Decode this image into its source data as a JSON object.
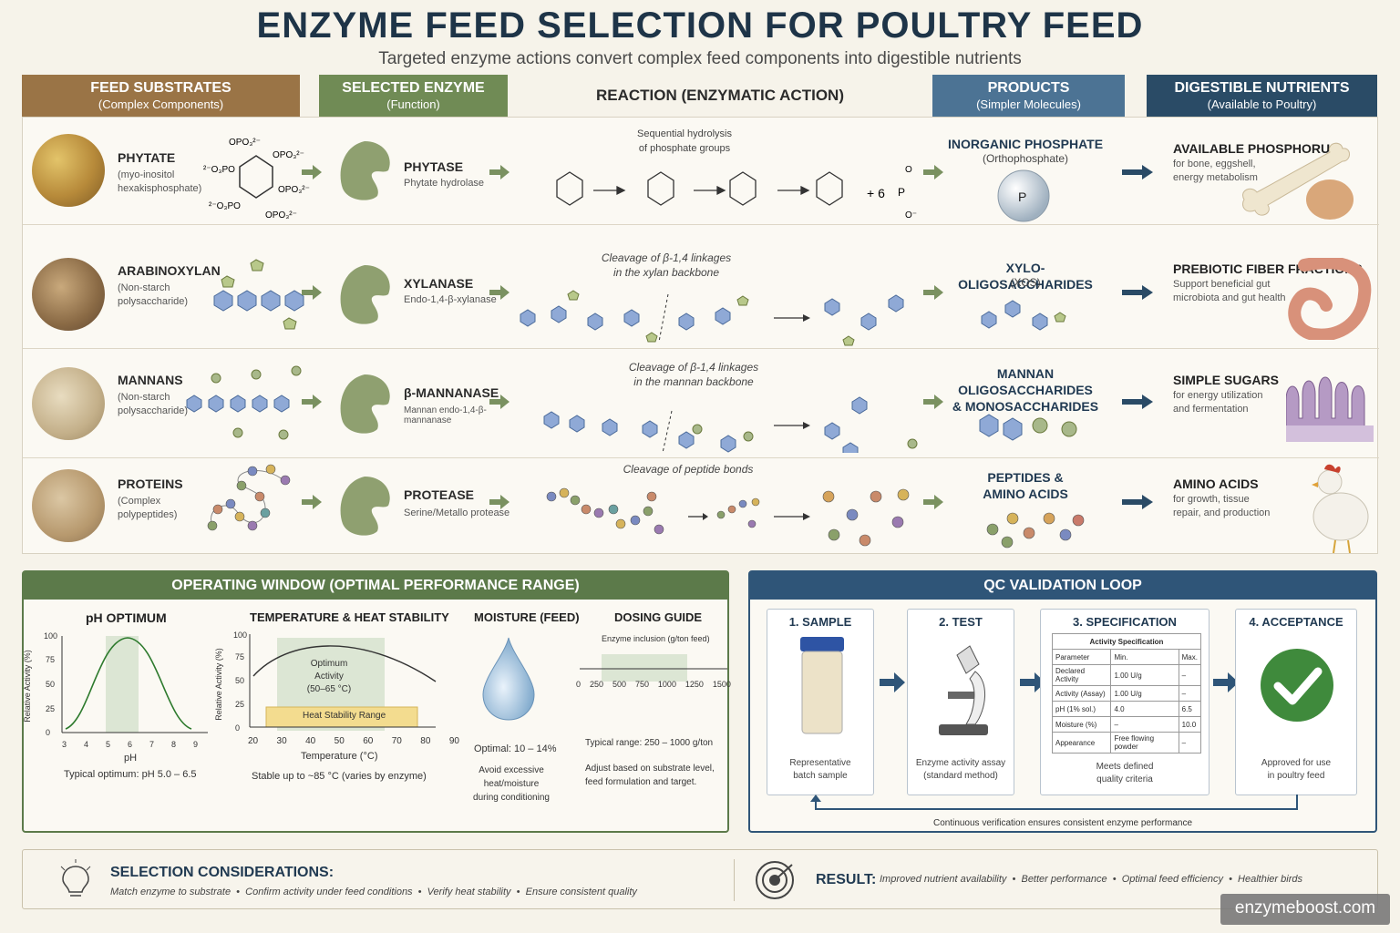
{
  "title": "ENZYME FEED SELECTION FOR POULTRY FEED",
  "subtitle": "Targeted enzyme actions convert complex feed components into digestible nutrients",
  "headers": {
    "substrates": {
      "title": "FEED SUBSTRATES",
      "sub": "(Complex Components)"
    },
    "enzyme": {
      "title": "SELECTED ENZYME",
      "sub": "(Function)"
    },
    "reaction": {
      "title": "REACTION (ENZYMATIC ACTION)"
    },
    "products": {
      "title": "PRODUCTS",
      "sub": "(Simpler Molecules)"
    },
    "nutrients": {
      "title": "DIGESTIBLE NUTRIENTS",
      "sub": "(Available to Poultry)"
    }
  },
  "rows": [
    {
      "substrate": "PHYTATE",
      "substrate_desc": [
        "(myo-inositol",
        "hexakisphosphate)"
      ],
      "enzyme": "PHYTASE",
      "enzyme_desc": "Phytate hydrolase",
      "reaction_note": [
        "Sequential hydrolysis",
        "of phosphate groups"
      ],
      "reaction_extra": "+ 6",
      "product": [
        "INORGANIC PHOSPHATE"
      ],
      "product_sub": "(Orthophosphate)",
      "nutrient": "AVAILABLE PHOSPHORUS",
      "nutrient_desc": [
        "for bone, eggshell,",
        "energy metabolism"
      ]
    },
    {
      "substrate": "ARABINOXYLAN",
      "substrate_desc": [
        "(Non-starch",
        "polysaccharide)"
      ],
      "enzyme": "XYLANASE",
      "enzyme_desc": "Endo-1,4-β-xylanase",
      "reaction_note": [
        "Cleavage of β-1,4 linkages",
        "in the xylan backbone"
      ],
      "product": [
        "XYLO-OLIGOSACCHARIDES"
      ],
      "product_sub": "(XOS)",
      "nutrient": "PREBIOTIC FIBER FRACTIONS",
      "nutrient_desc": [
        "Support beneficial gut",
        "microbiota and gut health"
      ]
    },
    {
      "substrate": "MANNANS",
      "substrate_desc": [
        "(Non-starch",
        "polysaccharide)"
      ],
      "enzyme": "β-MANNANASE",
      "enzyme_desc": "Mannan endo-1,4-β-mannanase",
      "reaction_note": [
        "Cleavage of β-1,4 linkages",
        "in the mannan backbone"
      ],
      "product": [
        "MANNAN OLIGOSACCHARIDES",
        "& MONOSACCHARIDES"
      ],
      "product_sub": "",
      "nutrient": "SIMPLE SUGARS",
      "nutrient_desc": [
        "for energy utilization",
        "and fermentation"
      ]
    },
    {
      "substrate": "PROTEINS",
      "substrate_desc": [
        "(Complex",
        "polypeptides)"
      ],
      "enzyme": "PROTEASE",
      "enzyme_desc": "Serine/Metallo protease",
      "reaction_note": [
        "Cleavage of peptide bonds"
      ],
      "product": [
        "PEPTIDES &",
        "AMINO ACIDS"
      ],
      "product_sub": "",
      "nutrient": "AMINO ACIDS",
      "nutrient_desc": [
        "for growth, tissue",
        "repair, and production"
      ]
    }
  ],
  "operating": {
    "title": "OPERATING WINDOW (OPTIMAL PERFORMANCE RANGE)",
    "ph": {
      "title": "pH OPTIMUM",
      "ylabel": "Relative Activity (%)",
      "xlabel": "pH",
      "yticks": [
        "0",
        "25",
        "50",
        "75",
        "100"
      ],
      "xticks": [
        "3",
        "4",
        "5",
        "6",
        "7",
        "8",
        "9"
      ],
      "note": "Typical optimum: pH 5.0 – 6.5"
    },
    "temp": {
      "title": "TEMPERATURE & HEAT STABILITY",
      "ylabel": "Relative Activity (%)",
      "xlabel": "Temperature (°C)",
      "yticks": [
        "0",
        "25",
        "50",
        "75",
        "100"
      ],
      "xticks": [
        "20",
        "30",
        "40",
        "50",
        "60",
        "70",
        "80",
        "90"
      ],
      "optimum": [
        "Optimum Activity",
        "(50–65 °C)"
      ],
      "stability": "Heat Stability Range",
      "note": "Stable up to ~85 °C (varies by enzyme)"
    },
    "moisture": {
      "title": "MOISTURE (FEED)",
      "optimal": "Optimal: 10 – 14%",
      "note": [
        "Avoid excessive heat/moisture",
        "during conditioning"
      ]
    },
    "dosing": {
      "title": "DOSING GUIDE",
      "axis": "Enzyme inclusion (g/ton feed)",
      "ticks": [
        "0",
        "250",
        "500",
        "750",
        "1000",
        "1250",
        "1500"
      ],
      "typical": "Typical range: 250 – 1000 g/ton",
      "note": [
        "Adjust based on substrate level,",
        "feed formulation and target."
      ]
    }
  },
  "qc": {
    "title": "QC VALIDATION LOOP",
    "steps": [
      {
        "title": "1. SAMPLE",
        "foot": [
          "Representative",
          "batch sample"
        ]
      },
      {
        "title": "2. TEST",
        "foot": [
          "Enzyme activity assay",
          "(standard method)"
        ]
      },
      {
        "title": "3. SPECIFICATION",
        "foot": [
          "Meets defined",
          "quality criteria"
        ]
      },
      {
        "title": "4. ACCEPTANCE",
        "foot": [
          "Approved for use",
          "in poultry feed"
        ]
      }
    ],
    "spec_table": {
      "caption": "Activity Specification",
      "headers": [
        "Parameter",
        "Min.",
        "Max."
      ],
      "rows": [
        [
          "Declared Activity",
          "1.00 U/g",
          "–"
        ],
        [
          "Activity (Assay)",
          "1.00 U/g",
          "–"
        ],
        [
          "pH (1% sol.)",
          "4.0",
          "6.5"
        ],
        [
          "Moisture (%)",
          "–",
          "10.0"
        ],
        [
          "Appearance",
          "Free flowing powder",
          "–"
        ]
      ]
    },
    "loop_note": "Continuous verification ensures consistent enzyme performance"
  },
  "bottom": {
    "sel_title": "SELECTION CONSIDERATIONS:",
    "sel_items": "Match enzyme to substrate  •  Confirm activity under feed conditions  •  Verify heat stability  •  Ensure consistent quality",
    "result_label": "RESULT:",
    "result_items": "Improved nutrient availability  •  Better performance  •  Optimal feed efficiency  •  Healthier birds"
  },
  "watermark": "enzymeboost.com",
  "colors": {
    "substrate": "#9a7446",
    "enzyme": "#708b55",
    "products": "#4c7394",
    "nutrients": "#2a4b66",
    "green_panel": "#5c7a4a",
    "blue_panel": "#2f5578"
  }
}
